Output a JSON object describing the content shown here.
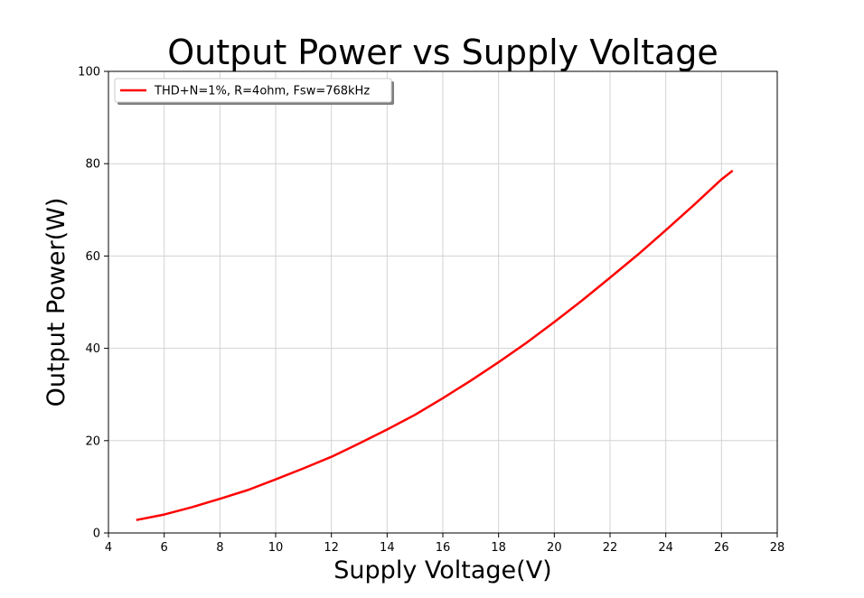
{
  "chart_data": {
    "type": "line",
    "title": "Output Power vs Supply Voltage",
    "xlabel": "Supply Voltage(V)",
    "ylabel": "Output Power(W)",
    "xlim": [
      4,
      28
    ],
    "ylim": [
      0,
      100
    ],
    "xticks": [
      4,
      6,
      8,
      10,
      12,
      14,
      16,
      18,
      20,
      22,
      24,
      26,
      28
    ],
    "yticks": [
      0,
      20,
      40,
      60,
      80,
      100
    ],
    "grid": true,
    "legend_position": "top-left",
    "series": [
      {
        "name": "THD+N=1%, R=4ohm, Fsw=768kHz",
        "color": "#ff0000",
        "x": [
          5,
          6,
          7,
          8,
          9,
          10,
          11,
          12,
          13,
          14,
          15,
          16,
          17,
          18,
          19,
          20,
          21,
          22,
          23,
          24,
          25,
          26,
          26.4
        ],
        "y": [
          2.8,
          4.0,
          5.6,
          7.4,
          9.3,
          11.6,
          14.0,
          16.5,
          19.4,
          22.4,
          25.6,
          29.2,
          33.0,
          37.0,
          41.2,
          45.7,
          50.4,
          55.3,
          60.3,
          65.6,
          71.0,
          76.6,
          78.5
        ]
      }
    ]
  }
}
